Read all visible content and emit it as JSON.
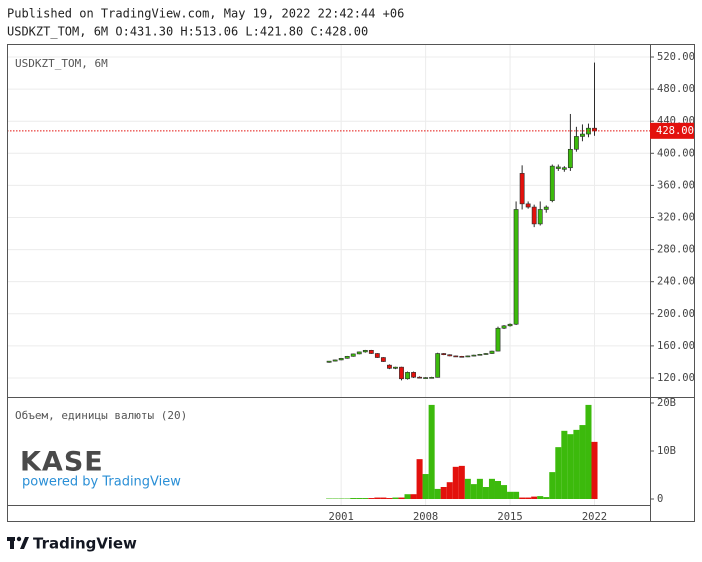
{
  "chart_data": {
    "type": "candlestick",
    "published": "Published on TradingView.com, May 19, 2022 22:42:44 +06",
    "header": "USDKZT_TOM, 6M O:431.30 H:513.06 L:421.80 C:428.00",
    "title": "USDKZT_TOM, 6M",
    "x": [
      2000,
      2000.5,
      2001,
      2001.5,
      2002,
      2002.5,
      2003,
      2003.5,
      2004,
      2004.5,
      2005,
      2005.5,
      2006,
      2006.5,
      2007,
      2007.5,
      2008,
      2008.5,
      2009,
      2009.5,
      2010,
      2010.5,
      2011,
      2011.5,
      2012,
      2012.5,
      2013,
      2013.5,
      2014,
      2014.5,
      2015,
      2015.5,
      2016,
      2016.5,
      2017,
      2017.5,
      2018,
      2018.5,
      2019,
      2019.5,
      2020,
      2020.5,
      2021,
      2021.5,
      2022
    ],
    "open": [
      139.5,
      141,
      142.5,
      144.5,
      147,
      150,
      152.5,
      154.5,
      150.5,
      145.5,
      136,
      132,
      133.5,
      119,
      127,
      121,
      120,
      120.3,
      120.8,
      150.5,
      149,
      147.5,
      147,
      146.5,
      147.5,
      148.5,
      149.5,
      150.5,
      153.5,
      182,
      185,
      187,
      375,
      337,
      333,
      312,
      330,
      341,
      381,
      380,
      382,
      405,
      421,
      424,
      431.3
    ],
    "high": [
      141,
      143,
      145,
      147.5,
      150.5,
      153,
      155,
      155,
      151,
      146,
      137,
      134,
      134,
      128,
      128,
      122,
      121,
      121.5,
      151.5,
      151,
      149.5,
      148,
      147.5,
      148,
      149,
      150,
      151,
      154,
      184,
      186,
      188,
      340,
      385,
      340,
      336,
      340,
      335,
      386,
      386,
      384,
      449,
      433,
      436,
      437,
      513.06
    ],
    "low": [
      139,
      140.5,
      142,
      144,
      146.5,
      149.5,
      151.5,
      150,
      145,
      140,
      131,
      131,
      117,
      118,
      120,
      119.5,
      119.5,
      120,
      120.5,
      148.5,
      147,
      146.5,
      146,
      146,
      147,
      148,
      149,
      150,
      153,
      181,
      184,
      186,
      330,
      331,
      308,
      310,
      326,
      339,
      378,
      377,
      378,
      402,
      415,
      420,
      421.8
    ],
    "close": [
      141,
      142.5,
      144.5,
      147,
      150,
      152.5,
      154.5,
      150.5,
      145.5,
      140.5,
      132,
      133.5,
      119,
      127,
      121,
      120,
      120.5,
      120.8,
      150.5,
      149,
      147.5,
      147,
      146.5,
      147.5,
      148.5,
      149.5,
      150.5,
      153.5,
      182,
      185,
      187,
      330,
      337,
      333,
      312,
      330,
      333,
      384,
      383,
      382,
      405,
      421,
      424,
      431.3,
      428
    ],
    "up_color": "#3cba0c",
    "down_color": "#e3110d",
    "xlim": [
      1973.3,
      2026.6
    ],
    "xticks": [
      2001,
      2008,
      2015,
      2022
    ],
    "ylim": [
      96.3,
      536.2
    ],
    "yticks": [
      {
        "value": 120,
        "label": "120.00"
      },
      {
        "value": 160,
        "label": "160.00"
      },
      {
        "value": 200,
        "label": "200.00"
      },
      {
        "value": 240,
        "label": "240.00"
      },
      {
        "value": 280,
        "label": "280.00"
      },
      {
        "value": 320,
        "label": "320.00"
      },
      {
        "value": 360,
        "label": "360.00"
      },
      {
        "value": 400,
        "label": "400.00"
      },
      {
        "value": 440,
        "label": "440.00"
      },
      {
        "value": 480,
        "label": "480.00"
      },
      {
        "value": 520,
        "label": "520.00"
      }
    ],
    "grid": true,
    "last_price": {
      "value": 428,
      "label": "428.00",
      "color": "#e3110d"
    },
    "volume": {
      "title": "Объем, единицы валюты (20)",
      "values": [
        0.1,
        0.1,
        0.1,
        0.1,
        0.2,
        0.2,
        0.2,
        0.2,
        0.3,
        0.3,
        0.2,
        0.3,
        0.3,
        1.0,
        1.0,
        8.3,
        5.2,
        19.6,
        2.1,
        2.5,
        3.5,
        6.7,
        6.9,
        4.2,
        3.1,
        4.2,
        2.5,
        4.2,
        3.75,
        2.9,
        1.5,
        1.5,
        0.3,
        0.3,
        0.5,
        0.6,
        0.4,
        5.6,
        10.8,
        14.2,
        13.5,
        14.4,
        15.4,
        19.6,
        11.9
      ],
      "ylim": [
        -1.25,
        20.83
      ],
      "yticks": [
        0,
        {
          "value": 10,
          "label": "10B"
        },
        {
          "value": 20,
          "label": "20B"
        }
      ]
    },
    "branding": {
      "kase": "KASE",
      "powered": "powered by TradingView",
      "footer": "TradingView"
    }
  }
}
